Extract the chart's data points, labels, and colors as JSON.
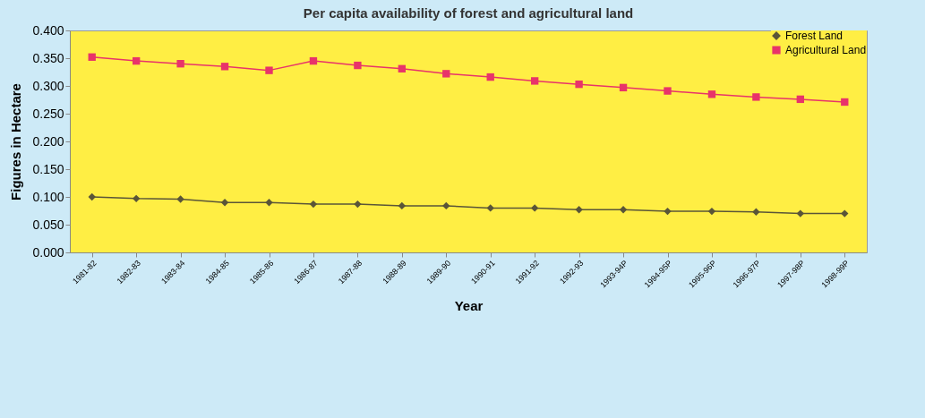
{
  "chart_data": {
    "type": "line",
    "title": "Per capita availability of forest and agricultural land",
    "xlabel": "Year",
    "ylabel": "Figures in Hectare",
    "categories": [
      "1981-82",
      "1982-83",
      "1983-84",
      "1984-85",
      "1985-86",
      "1986-87",
      "1987-88",
      "1988-89",
      "1989-90",
      "1990-91",
      "1991-92",
      "1992-93",
      "1993-94P",
      "1994-95P",
      "1995-96P",
      "1996-97P",
      "1997-98P",
      "1998-99P"
    ],
    "series": [
      {
        "name": "Forest Land",
        "color": "#5a5538",
        "marker": "diamond",
        "values": [
          0.1,
          0.097,
          0.096,
          0.09,
          0.09,
          0.087,
          0.087,
          0.084,
          0.084,
          0.08,
          0.08,
          0.077,
          0.077,
          0.074,
          0.074,
          0.073,
          0.07,
          0.07
        ]
      },
      {
        "name": "Agricultural Land",
        "color": "#e8336a",
        "marker": "square",
        "values": [
          0.352,
          0.345,
          0.34,
          0.335,
          0.328,
          0.345,
          0.337,
          0.331,
          0.322,
          0.316,
          0.309,
          0.303,
          0.297,
          0.291,
          0.285,
          0.28,
          0.276,
          0.271
        ]
      }
    ],
    "ylim": [
      0,
      0.4
    ],
    "yticks": [
      {
        "value": 0,
        "label": "0.000"
      },
      {
        "value": 0.05,
        "label": "0.050"
      },
      {
        "value": 0.1,
        "label": "0.100"
      },
      {
        "value": 0.15,
        "label": "0.150"
      },
      {
        "value": 0.2,
        "label": "0.200"
      },
      {
        "value": 0.25,
        "label": "0.250"
      },
      {
        "value": 0.3,
        "label": "0.300"
      },
      {
        "value": 0.35,
        "label": "0.350"
      },
      {
        "value": 0.4,
        "label": "0.400"
      }
    ],
    "grid": false,
    "legend": "top right"
  }
}
